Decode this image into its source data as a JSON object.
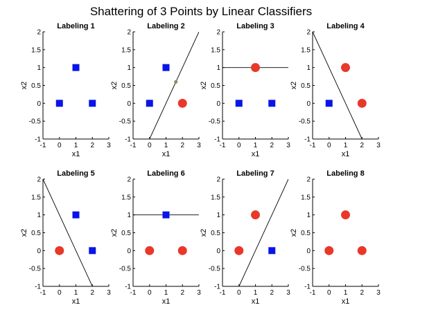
{
  "figure": {
    "title": "Shattering of 3 Points by Linear Classifiers"
  },
  "chart_data": [
    {
      "type": "scatter",
      "title": "Labeling 1",
      "xlabel": "x1",
      "ylabel": "x2",
      "xlim": [
        -1,
        3
      ],
      "ylim": [
        -1,
        2
      ],
      "xticks": [
        "-1",
        "0",
        "1",
        "2",
        "3"
      ],
      "yticks": [
        "-1",
        "-0.5",
        "0",
        "0.5",
        "1",
        "1.5",
        "2"
      ],
      "points": [
        {
          "x": 0,
          "y": 0,
          "class": "square"
        },
        {
          "x": 1,
          "y": 1,
          "class": "square"
        },
        {
          "x": 2,
          "y": 0,
          "class": "square"
        }
      ],
      "boundary": null
    },
    {
      "type": "scatter",
      "title": "Labeling 2",
      "xlabel": "x1",
      "ylabel": "x2",
      "xlim": [
        -1,
        3
      ],
      "ylim": [
        -1,
        2
      ],
      "xticks": [
        "-1",
        "0",
        "1",
        "2",
        "3"
      ],
      "yticks": [
        "-1",
        "-0.5",
        "0",
        "0.5",
        "1",
        "1.5",
        "2"
      ],
      "points": [
        {
          "x": 0,
          "y": 0,
          "class": "square"
        },
        {
          "x": 1,
          "y": 1,
          "class": "square"
        },
        {
          "x": 2,
          "y": 0,
          "class": "circle"
        }
      ],
      "boundary": [
        [
          0,
          -1
        ],
        [
          3,
          2
        ]
      ],
      "marker": {
        "x": 1.6,
        "y": 0.6
      }
    },
    {
      "type": "scatter",
      "title": "Labeling 3",
      "xlabel": "x1",
      "ylabel": "x2",
      "xlim": [
        -1,
        3
      ],
      "ylim": [
        -1,
        2
      ],
      "xticks": [
        "-1",
        "0",
        "1",
        "2",
        "3"
      ],
      "yticks": [
        "-1",
        "-0.5",
        "0",
        "0.5",
        "1",
        "1.5",
        "2"
      ],
      "points": [
        {
          "x": 0,
          "y": 0,
          "class": "square"
        },
        {
          "x": 1,
          "y": 1,
          "class": "circle"
        },
        {
          "x": 2,
          "y": 0,
          "class": "square"
        }
      ],
      "boundary": [
        [
          -1,
          1
        ],
        [
          3,
          1
        ]
      ]
    },
    {
      "type": "scatter",
      "title": "Labeling 4",
      "xlabel": "x1",
      "ylabel": "x2",
      "xlim": [
        -1,
        3
      ],
      "ylim": [
        -1,
        2
      ],
      "xticks": [
        "-1",
        "0",
        "1",
        "2",
        "3"
      ],
      "yticks": [
        "-1",
        "-0.5",
        "0",
        "0.5",
        "1",
        "1.5",
        "2"
      ],
      "points": [
        {
          "x": 0,
          "y": 0,
          "class": "square"
        },
        {
          "x": 1,
          "y": 1,
          "class": "circle"
        },
        {
          "x": 2,
          "y": 0,
          "class": "circle"
        }
      ],
      "boundary": [
        [
          -1,
          2
        ],
        [
          2,
          -1
        ]
      ]
    },
    {
      "type": "scatter",
      "title": "Labeling 5",
      "xlabel": "x1",
      "ylabel": "x2",
      "xlim": [
        -1,
        3
      ],
      "ylim": [
        -1,
        2
      ],
      "xticks": [
        "-1",
        "0",
        "1",
        "2",
        "3"
      ],
      "yticks": [
        "-1",
        "-0.5",
        "0",
        "0.5",
        "1",
        "1.5",
        "2"
      ],
      "points": [
        {
          "x": 0,
          "y": 0,
          "class": "circle"
        },
        {
          "x": 1,
          "y": 1,
          "class": "square"
        },
        {
          "x": 2,
          "y": 0,
          "class": "square"
        }
      ],
      "boundary": [
        [
          -1,
          2
        ],
        [
          2,
          -1
        ]
      ]
    },
    {
      "type": "scatter",
      "title": "Labeling 6",
      "xlabel": "x1",
      "ylabel": "x2",
      "xlim": [
        -1,
        3
      ],
      "ylim": [
        -1,
        2
      ],
      "xticks": [
        "-1",
        "0",
        "1",
        "2",
        "3"
      ],
      "yticks": [
        "-1",
        "-0.5",
        "0",
        "0.5",
        "1",
        "1.5",
        "2"
      ],
      "points": [
        {
          "x": 0,
          "y": 0,
          "class": "circle"
        },
        {
          "x": 1,
          "y": 1,
          "class": "square"
        },
        {
          "x": 2,
          "y": 0,
          "class": "circle"
        }
      ],
      "boundary": [
        [
          -1,
          1
        ],
        [
          3,
          1
        ]
      ]
    },
    {
      "type": "scatter",
      "title": "Labeling 7",
      "xlabel": "x1",
      "ylabel": "x2",
      "xlim": [
        -1,
        3
      ],
      "ylim": [
        -1,
        2
      ],
      "xticks": [
        "-1",
        "0",
        "1",
        "2",
        "3"
      ],
      "yticks": [
        "-1",
        "-0.5",
        "0",
        "0.5",
        "1",
        "1.5",
        "2"
      ],
      "points": [
        {
          "x": 0,
          "y": 0,
          "class": "circle"
        },
        {
          "x": 1,
          "y": 1,
          "class": "circle"
        },
        {
          "x": 2,
          "y": 0,
          "class": "square"
        }
      ],
      "boundary": [
        [
          0,
          -1
        ],
        [
          3,
          2
        ]
      ]
    },
    {
      "type": "scatter",
      "title": "Labeling 8",
      "xlabel": "x1",
      "ylabel": "x2",
      "xlim": [
        -1,
        3
      ],
      "ylim": [
        -1,
        2
      ],
      "xticks": [
        "-1",
        "0",
        "1",
        "2",
        "3"
      ],
      "yticks": [
        "-1",
        "-0.5",
        "0",
        "0.5",
        "1",
        "1.5",
        "2"
      ],
      "points": [
        {
          "x": 0,
          "y": 0,
          "class": "circle"
        },
        {
          "x": 1,
          "y": 1,
          "class": "circle"
        },
        {
          "x": 2,
          "y": 0,
          "class": "circle"
        }
      ],
      "boundary": null
    }
  ],
  "colors": {
    "square": "#0a14e6",
    "circle": "#e8382a",
    "marker": "#8b8b63"
  }
}
